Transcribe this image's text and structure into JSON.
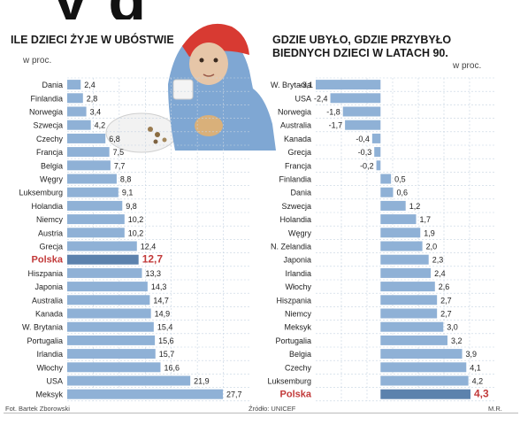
{
  "colors": {
    "bar": "#8fb1d6",
    "bar_highlight": "#5c82ad",
    "highlight_text": "#c23a3a",
    "grid": "#c6d3e2",
    "text": "#222222"
  },
  "header_fragment": "y g",
  "footer": {
    "photo_credit": "Fot. Bartek Zborowski",
    "source": "Źródło: UNICEF",
    "initials": "M.R."
  },
  "chart_data": [
    {
      "type": "bar",
      "orientation": "horizontal",
      "title": "ILE DZIECI ŻYJE W UBÓSTWIE",
      "unit": "w proc.",
      "categories": [
        "Dania",
        "Finlandia",
        "Norwegia",
        "Szwecja",
        "Czechy",
        "Francja",
        "Belgia",
        "Węgry",
        "Luksemburg",
        "Holandia",
        "Niemcy",
        "Austria",
        "Grecja",
        "Polska",
        "Hiszpania",
        "Japonia",
        "Australia",
        "Kanada",
        "W. Brytania",
        "Portugalia",
        "Irlandia",
        "Włochy",
        "USA",
        "Meksyk"
      ],
      "values": [
        2.4,
        2.8,
        3.4,
        4.2,
        6.8,
        7.5,
        7.7,
        8.8,
        9.1,
        9.8,
        10.2,
        10.2,
        12.4,
        12.7,
        13.3,
        14.3,
        14.7,
        14.9,
        15.4,
        15.6,
        15.7,
        16.6,
        21.9,
        27.7
      ],
      "value_labels": [
        "2,4",
        "2,8",
        "3,4",
        "4,2",
        "6,8",
        "7,5",
        "7,7",
        "8,8",
        "9,1",
        "9,8",
        "10,2",
        "10,2",
        "12,4",
        "12,7",
        "13,3",
        "14,3",
        "14,7",
        "14,9",
        "15,4",
        "15,6",
        "15,7",
        "16,6",
        "21,9",
        "27,7"
      ],
      "highlight": "Polska",
      "xlim": [
        0,
        27.7
      ],
      "grid": true
    },
    {
      "type": "bar",
      "orientation": "horizontal",
      "title": "GDZIE UBYŁO, GDZIE PRZYBYŁO\nBIEDNYCH DZIECI W LATACH 90.",
      "unit": "w proc.",
      "categories": [
        "W. Brytania",
        "USA",
        "Norwegia",
        "Australia",
        "Kanada",
        "Grecja",
        "Francja",
        "Finlandia",
        "Dania",
        "Szwecja",
        "Holandia",
        "Węgry",
        "N. Zelandia",
        "Japonia",
        "Irlandia",
        "Włochy",
        "Hiszpania",
        "Niemcy",
        "Meksyk",
        "Portugalia",
        "Belgia",
        "Czechy",
        "Luksemburg",
        "Polska"
      ],
      "values": [
        -3.1,
        -2.4,
        -1.8,
        -1.7,
        -0.4,
        -0.3,
        -0.2,
        0.5,
        0.6,
        1.2,
        1.7,
        1.9,
        2.0,
        2.3,
        2.4,
        2.6,
        2.7,
        2.7,
        3.0,
        3.2,
        3.9,
        4.1,
        4.2,
        4.3
      ],
      "value_labels": [
        "-3,1",
        "-2,4",
        "-1,8",
        "-1,7",
        "-0,4",
        "-0,3",
        "-0,2",
        "0,5",
        "0,6",
        "1,2",
        "1,7",
        "1,9",
        "2,0",
        "2,3",
        "2,4",
        "2,6",
        "2,7",
        "2,7",
        "3,0",
        "3,2",
        "3,9",
        "4,1",
        "4,2",
        "4,3"
      ],
      "highlight": "Polska",
      "xlim": [
        -3.1,
        4.3
      ],
      "grid": true
    }
  ]
}
